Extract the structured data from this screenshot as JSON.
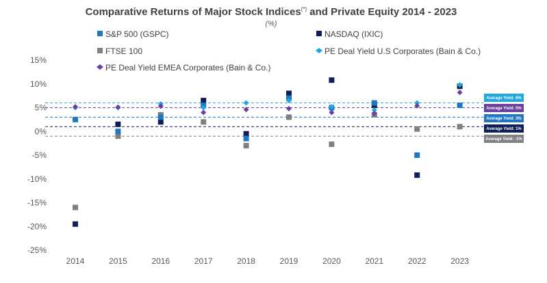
{
  "chart_data": {
    "type": "scatter",
    "title": "Comparative Returns of Major Stock Indices",
    "title_superscript": "(*)",
    "title_suffix": " and Private Equity 2014 - 2023",
    "subtitle": "(%)",
    "x": [
      "2014",
      "2015",
      "2016",
      "2017",
      "2018",
      "2019",
      "2020",
      "2021",
      "2022",
      "2023"
    ],
    "ylim": [
      -25,
      15
    ],
    "yticks": [
      "15%",
      "10%",
      "5%",
      "0%",
      "-5%",
      "-10%",
      "-15%",
      "-20%",
      "-25%"
    ],
    "grid": false,
    "legend_position": "top",
    "series": [
      {
        "name": "S&P 500 (GSPC)",
        "marker": "square",
        "color": "#1f78c1",
        "values": [
          2.5,
          0.0,
          3.0,
          5.5,
          -1.5,
          7.0,
          5.0,
          6.0,
          -5.0,
          5.5
        ]
      },
      {
        "name": "NASDAQ (IXIC)",
        "marker": "square",
        "color": "#0f1f56",
        "values": [
          -19.5,
          1.5,
          2.0,
          6.5,
          -0.5,
          8.0,
          10.8,
          5.5,
          -9.2,
          9.5
        ]
      },
      {
        "name": "FTSE 100",
        "marker": "square",
        "color": "#808080",
        "values": [
          -16.0,
          -1.0,
          3.5,
          2.0,
          -3.0,
          3.0,
          -2.7,
          3.5,
          0.5,
          1.0
        ]
      },
      {
        "name": "PE Deal Yield U.S Corporates (Bain & Co.)",
        "marker": "diamond",
        "color": "#1ea7e1",
        "values": [
          5.0,
          5.0,
          5.8,
          5.0,
          6.0,
          6.5,
          5.2,
          4.5,
          6.0,
          9.8
        ]
      },
      {
        "name": "PE Deal Yield EMEA Corporates (Bain & Co.)",
        "marker": "diamond",
        "color": "#6b3fa0",
        "values": [
          5.2,
          5.1,
          5.3,
          4.0,
          4.6,
          4.8,
          4.0,
          3.8,
          5.4,
          8.2
        ]
      }
    ],
    "reference_lines": [
      {
        "value": 6,
        "label": "Average Yield: 6%",
        "color": "#1ea7e1"
      },
      {
        "value": 5,
        "label": "Average Yield: 5%",
        "color": "#6b3fa0"
      },
      {
        "value": 3,
        "label": "Average Yield: 3%",
        "color": "#1f78c1"
      },
      {
        "value": 1,
        "label": "Average Yield: 1%",
        "color": "#0f1f56"
      },
      {
        "value": -1,
        "label": "Average Yield: -1%",
        "color": "#808080"
      }
    ]
  }
}
